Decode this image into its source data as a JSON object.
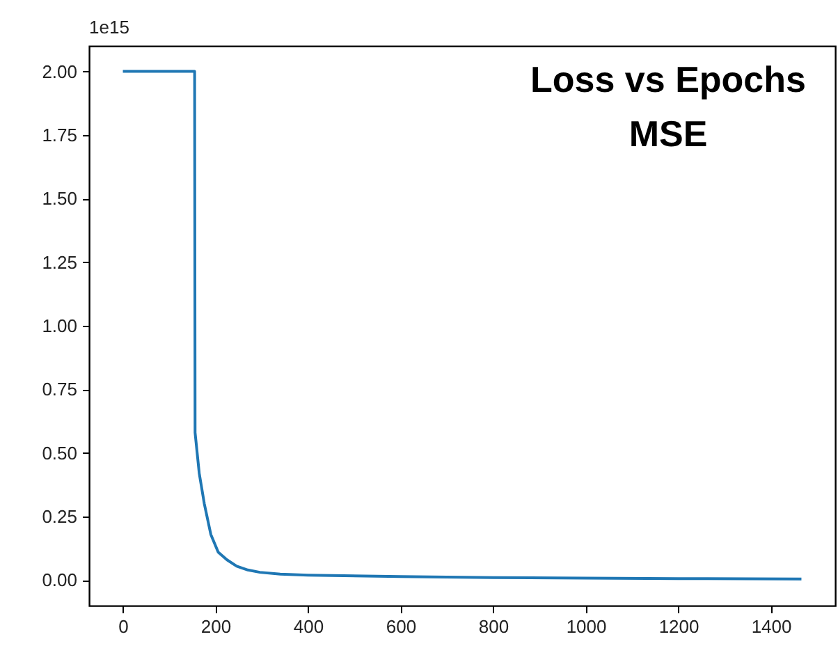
{
  "chart_data": {
    "type": "line",
    "title": "Loss vs Epochs",
    "subtitle": "MSE",
    "annotations": [
      "1e15"
    ],
    "x": [
      0,
      155,
      156,
      165,
      176,
      190,
      206,
      225,
      246,
      270,
      296,
      340,
      400,
      600,
      800,
      1000,
      1200,
      1466
    ],
    "series": [
      {
        "color": "#1f77b4",
        "values": [
          2.0,
          2.0,
          0.58,
          0.42,
          0.3,
          0.18,
          0.11,
          0.08,
          0.055,
          0.04,
          0.031,
          0.024,
          0.02,
          0.014,
          0.01,
          0.008,
          0.006,
          0.005
        ]
      }
    ],
    "xlim": [
      -73,
      1539
    ],
    "xticks": [
      0,
      200,
      400,
      600,
      800,
      1000,
      1200,
      1400
    ],
    "ylim": [
      -0.1,
      2.1
    ],
    "yticks": [
      {
        "value": 0,
        "label": "0.00"
      },
      {
        "value": 0.25,
        "label": "0.25"
      },
      {
        "value": 0.5,
        "label": "0.50"
      },
      {
        "value": 0.75,
        "label": "0.75"
      },
      {
        "value": 1,
        "label": "1.00"
      },
      {
        "value": 1.25,
        "label": "1.25"
      },
      {
        "value": 1.5,
        "label": "1.50"
      },
      {
        "value": 1.75,
        "label": "1.75"
      },
      {
        "value": 2,
        "label": "2.00"
      }
    ],
    "grid": false
  }
}
